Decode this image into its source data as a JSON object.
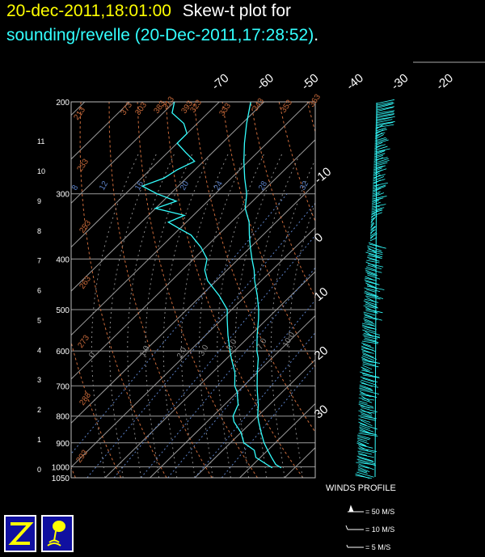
{
  "title": {
    "datetime": "20-dec-2011,18:01:00",
    "plot_label": "Skew-t plot for",
    "source": "sounding/revelle (20-Dec-2011,17:28:52)",
    "period": "."
  },
  "chart_data": {
    "type": "line",
    "diagram": "skew-t log-p",
    "pressure_ticks": [
      200,
      300,
      400,
      500,
      600,
      700,
      800,
      900,
      1000,
      1050
    ],
    "height_km_ticks": [
      0,
      1,
      2,
      3,
      4,
      5,
      6,
      7,
      8,
      9,
      10,
      11
    ],
    "temperature_ticks_top": [
      -70,
      -60,
      -50,
      -40,
      -30,
      -20
    ],
    "temperature_ticks_right": [
      -10,
      0,
      10,
      20,
      30
    ],
    "dry_adiabat_labels": [
      "213",
      "233",
      "253",
      "263",
      "273",
      "283",
      "293",
      "303",
      "313",
      "323",
      "333",
      "343",
      "353",
      "363",
      "373",
      "383",
      "393"
    ],
    "mixing_ratio_labels": [
      "8",
      "12",
      "16",
      "20",
      "24",
      "28",
      "32"
    ],
    "moist_labels": [
      "0",
      "1.0",
      "2.0",
      "3.0",
      "5.0",
      "7.0",
      "10.0"
    ],
    "series": [
      {
        "name": "temperature",
        "color": "#33ffff",
        "pressure": [
          1005,
          990,
          960,
          930,
          900,
          860,
          820,
          800,
          760,
          720,
          700,
          660,
          620,
          600,
          560,
          520,
          500,
          470,
          440,
          420,
          400,
          380,
          360,
          340,
          320,
          300,
          280,
          260,
          240,
          220,
          200
        ],
        "temperature": [
          27,
          25,
          22.5,
          20,
          17.5,
          14.5,
          11.5,
          10,
          7.5,
          4.5,
          3,
          0,
          -3,
          -5,
          -8.5,
          -12,
          -14,
          -17.5,
          -21.5,
          -24,
          -27,
          -30,
          -33,
          -36,
          -40,
          -43,
          -47,
          -51,
          -55,
          -59,
          -63
        ]
      },
      {
        "name": "dewpoint",
        "color": "#33ffff",
        "pressure": [
          1005,
          990,
          960,
          930,
          900,
          860,
          820,
          800,
          760,
          720,
          700,
          660,
          620,
          600,
          560,
          520,
          500,
          470,
          440,
          420,
          400,
          380,
          360,
          350,
          340,
          330,
          320,
          310,
          300,
          290,
          280,
          270,
          260,
          250,
          240,
          230,
          220,
          210,
          200
        ],
        "temperature": [
          25,
          23,
          19,
          17,
          13,
          10,
          6,
          4.5,
          3,
          0,
          -2,
          -5,
          -9,
          -11,
          -15,
          -19,
          -21,
          -26,
          -32,
          -35,
          -37,
          -41,
          -46,
          -50,
          -54,
          -52,
          -60,
          -57,
          -63,
          -68,
          -65,
          -64,
          -62,
          -66,
          -70,
          -70,
          -73,
          -78,
          -80
        ]
      }
    ]
  },
  "winds_profile": {
    "title": "WINDS PROFILE",
    "legend": [
      "= 50 M/S",
      "= 10 M/S",
      "= 5 M/S"
    ]
  },
  "logos": [
    "z-logo-icon",
    "satellite-dish-icon"
  ]
}
